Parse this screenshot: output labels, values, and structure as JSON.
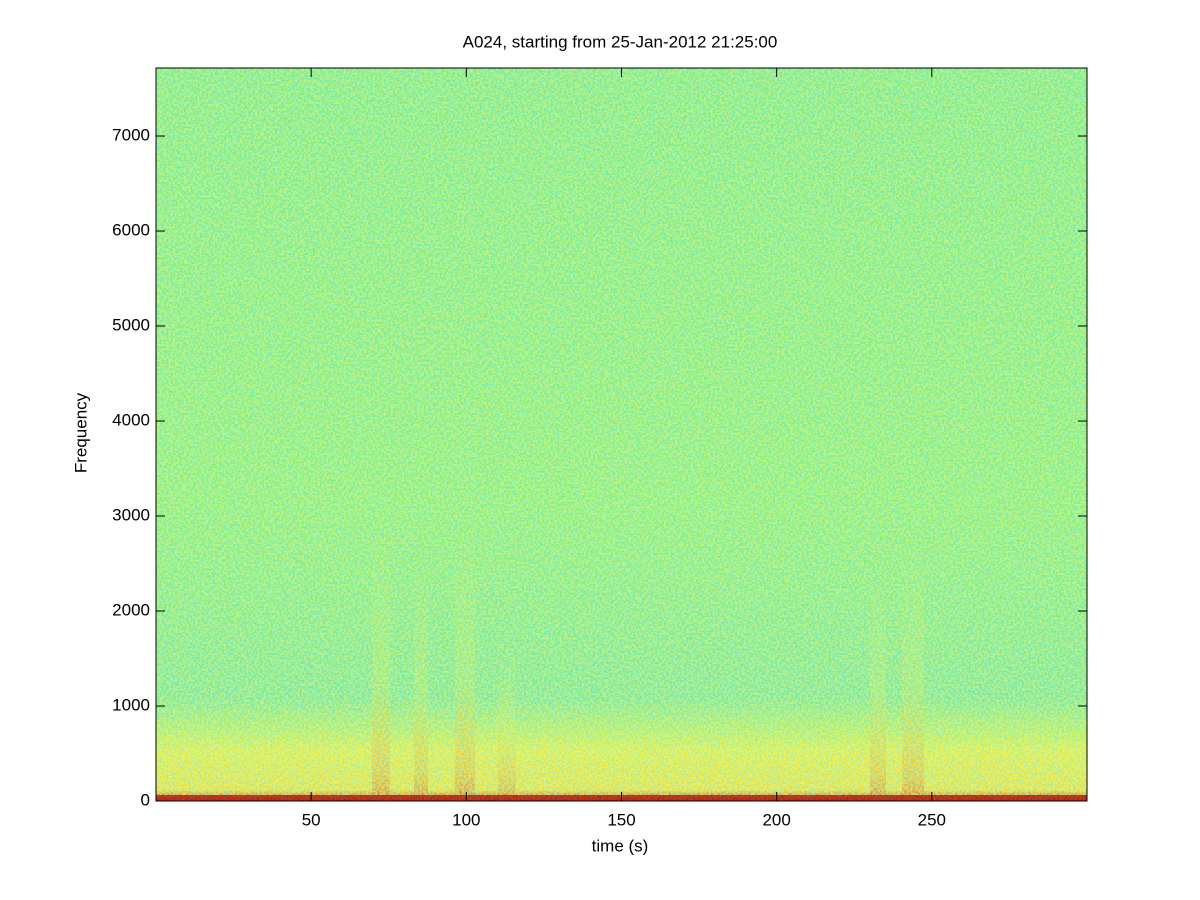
{
  "chart_data": {
    "type": "spectrogram",
    "title": "A024, starting from 25-Jan-2012 21:25:00",
    "x_label": "time (s)",
    "y_label": "Frequency",
    "xlim": [
      0,
      300
    ],
    "ylim": [
      0,
      7716
    ],
    "xticks": [
      50,
      100,
      150,
      200,
      250
    ],
    "yticks": [
      0,
      1000,
      2000,
      3000,
      4000,
      5000,
      6000,
      7000
    ]
  }
}
